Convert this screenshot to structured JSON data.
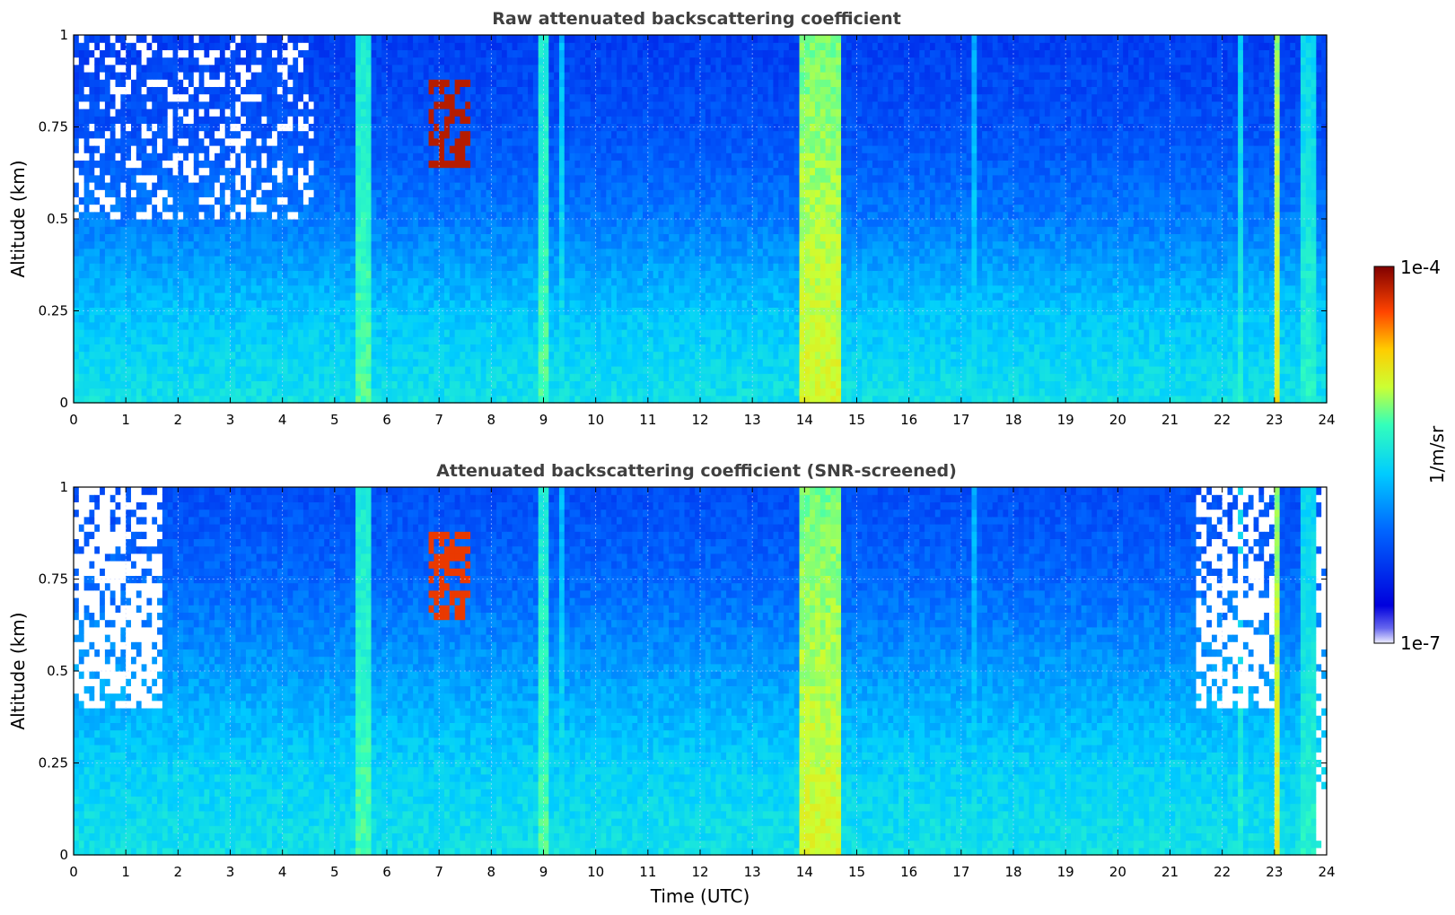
{
  "chart_data": [
    {
      "type": "heatmap",
      "title": "Raw attenuated backscattering coefficient",
      "xlabel": "",
      "ylabel": "Altitude (km)",
      "xlim": [
        0,
        24
      ],
      "ylim": [
        0,
        1
      ],
      "x_ticks": [
        "0",
        "1",
        "2",
        "3",
        "4",
        "5",
        "6",
        "7",
        "8",
        "9",
        "10",
        "11",
        "12",
        "13",
        "14",
        "15",
        "16",
        "17",
        "18",
        "19",
        "20",
        "21",
        "22",
        "23",
        "24"
      ],
      "y_ticks": [
        "0",
        "0.25",
        "0.5",
        "0.75",
        "1"
      ],
      "grid": true,
      "colormap": "jet",
      "log_scale": true,
      "background_level": [
        {
          "alt": 0.0,
          "value": 0.5
        },
        {
          "alt": 0.25,
          "value": 0.44
        },
        {
          "alt": 0.5,
          "value": 0.33
        },
        {
          "alt": 0.75,
          "value": 0.26
        },
        {
          "alt": 1.0,
          "value": 0.22
        }
      ],
      "vertical_features": [
        {
          "t_start": 5.4,
          "t_end": 5.65,
          "value": 0.6
        },
        {
          "t_start": 8.95,
          "t_end": 9.1,
          "value": 0.6
        },
        {
          "t_start": 9.35,
          "t_end": 9.45,
          "value": 0.5
        },
        {
          "t_start": 13.95,
          "t_end": 14.7,
          "value": 0.7
        },
        {
          "t_start": 17.2,
          "t_end": 17.3,
          "value": 0.48
        },
        {
          "t_start": 22.3,
          "t_end": 22.45,
          "value": 0.55
        },
        {
          "t_start": 23.05,
          "t_end": 23.15,
          "value": 0.72
        },
        {
          "t_start": 23.5,
          "t_end": 23.75,
          "value": 0.55
        }
      ],
      "cloud_feature": {
        "t_start": 6.8,
        "t_end": 7.6,
        "alt_min": 0.65,
        "alt_max": 0.87,
        "value": 0.95
      },
      "noise_region": {
        "t_start": 0,
        "t_end": 4.6,
        "alt_min": 0.5,
        "alt_max": 1.0
      }
    },
    {
      "type": "heatmap",
      "title": "Attenuated backscattering coefficient (SNR-screened)",
      "xlabel": "Time (UTC)",
      "ylabel": "Altitude (km)",
      "xlim": [
        0,
        24
      ],
      "ylim": [
        0,
        1
      ],
      "x_ticks": [
        "0",
        "1",
        "2",
        "3",
        "4",
        "5",
        "6",
        "7",
        "8",
        "9",
        "10",
        "11",
        "12",
        "13",
        "14",
        "15",
        "16",
        "17",
        "18",
        "19",
        "20",
        "21",
        "22",
        "23",
        "24"
      ],
      "y_ticks": [
        "0",
        "0.25",
        "0.5",
        "0.75",
        "1"
      ],
      "grid": true,
      "colormap": "jet",
      "log_scale": true,
      "background_level": [
        {
          "alt": 0.0,
          "value": 0.5
        },
        {
          "alt": 0.25,
          "value": 0.46
        },
        {
          "alt": 0.5,
          "value": 0.38
        },
        {
          "alt": 0.75,
          "value": 0.3
        },
        {
          "alt": 1.0,
          "value": 0.25
        }
      ],
      "vertical_features": [
        {
          "t_start": 5.4,
          "t_end": 5.65,
          "value": 0.6
        },
        {
          "t_start": 8.95,
          "t_end": 9.1,
          "value": 0.6
        },
        {
          "t_start": 9.35,
          "t_end": 9.45,
          "value": 0.5
        },
        {
          "t_start": 13.95,
          "t_end": 14.7,
          "value": 0.7
        },
        {
          "t_start": 17.2,
          "t_end": 17.3,
          "value": 0.48
        },
        {
          "t_start": 22.3,
          "t_end": 22.45,
          "value": 0.55
        },
        {
          "t_start": 23.05,
          "t_end": 23.15,
          "value": 0.72
        },
        {
          "t_start": 23.5,
          "t_end": 23.75,
          "value": 0.55
        }
      ],
      "cloud_feature": {
        "t_start": 6.8,
        "t_end": 7.6,
        "alt_min": 0.65,
        "alt_max": 0.87,
        "value": 0.9
      },
      "masked_regions": [
        {
          "t_start": 0.05,
          "t_end": 1.7,
          "alt_min": 0.4,
          "alt_max": 1.0
        },
        {
          "t_start": 21.5,
          "t_end": 23.0,
          "alt_min": 0.4,
          "alt_max": 1.0
        },
        {
          "t_start": 23.8,
          "t_end": 24.0,
          "alt_min": 0.0,
          "alt_max": 1.0
        }
      ]
    }
  ],
  "colorbar": {
    "label": "1/m/sr",
    "max_label": "1e-4",
    "min_label": "1e-7",
    "colormap": "jet"
  }
}
